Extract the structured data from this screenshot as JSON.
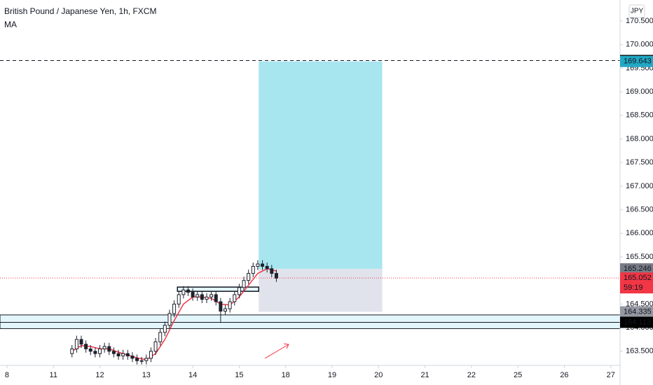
{
  "chart_data": {
    "type": "candlestick",
    "title": "British Pound / Japanese Yen, 1h, FXCM",
    "indicator": "MA",
    "currency": "JPY",
    "countdown": "59:19",
    "up_color": "#ffffff",
    "down_color": "#1e222d",
    "x": [
      1.4,
      1.5,
      1.6,
      1.7,
      1.8,
      1.9,
      2.0,
      2.1,
      2.2,
      2.3,
      2.4,
      2.5,
      2.6,
      2.7,
      2.8,
      2.9,
      3.0,
      3.1,
      3.2,
      3.3,
      3.4,
      3.5,
      3.6,
      3.7,
      3.8,
      3.9,
      4.0,
      4.1,
      4.2,
      4.3,
      4.4,
      4.5,
      4.6,
      4.7,
      4.8,
      4.9,
      5.0,
      5.1,
      5.2,
      5.3,
      5.4,
      5.5,
      5.6,
      5.7,
      5.8
    ],
    "open": [
      163.45,
      163.55,
      163.75,
      163.65,
      163.55,
      163.5,
      163.45,
      163.55,
      163.6,
      163.5,
      163.45,
      163.4,
      163.45,
      163.4,
      163.35,
      163.3,
      163.3,
      163.35,
      163.5,
      163.7,
      163.9,
      164.05,
      164.3,
      164.5,
      164.7,
      164.8,
      164.75,
      164.65,
      164.7,
      164.6,
      164.65,
      164.7,
      164.55,
      164.35,
      164.4,
      164.55,
      164.7,
      164.85,
      165.0,
      165.15,
      165.3,
      165.35,
      165.3,
      165.25,
      165.15
    ],
    "high": [
      163.63,
      163.83,
      163.83,
      163.73,
      163.63,
      163.58,
      163.63,
      163.68,
      163.68,
      163.58,
      163.53,
      163.53,
      163.53,
      163.48,
      163.43,
      163.38,
      163.43,
      163.58,
      163.78,
      163.98,
      164.13,
      164.38,
      164.58,
      164.78,
      164.88,
      164.88,
      164.83,
      164.78,
      164.78,
      164.73,
      164.78,
      164.78,
      164.63,
      164.48,
      164.63,
      164.78,
      164.93,
      165.08,
      165.23,
      165.38,
      165.43,
      165.43,
      165.38,
      165.33,
      165.23
    ],
    "low": [
      163.37,
      163.47,
      163.57,
      163.47,
      163.42,
      163.37,
      163.37,
      163.47,
      163.42,
      163.37,
      163.32,
      163.32,
      163.32,
      163.27,
      163.22,
      163.22,
      163.22,
      163.27,
      163.42,
      163.62,
      163.82,
      163.97,
      164.22,
      164.42,
      164.62,
      164.67,
      164.57,
      164.57,
      164.52,
      164.52,
      164.57,
      164.47,
      164.1,
      164.27,
      164.32,
      164.47,
      164.62,
      164.77,
      164.92,
      165.07,
      165.22,
      165.22,
      165.17,
      165.07,
      164.97
    ],
    "close": [
      163.55,
      163.75,
      163.65,
      163.55,
      163.5,
      163.45,
      163.55,
      163.6,
      163.5,
      163.45,
      163.4,
      163.45,
      163.4,
      163.35,
      163.3,
      163.3,
      163.35,
      163.5,
      163.7,
      163.9,
      164.05,
      164.3,
      164.5,
      164.7,
      164.8,
      164.75,
      164.65,
      164.7,
      164.6,
      164.65,
      164.7,
      164.55,
      164.35,
      164.4,
      164.55,
      164.7,
      164.85,
      165.0,
      165.15,
      165.3,
      165.35,
      165.3,
      165.25,
      165.15,
      165.05
    ],
    "ma": {
      "color": "#f23645",
      "x": [
        1.4,
        1.6,
        1.8,
        2.0,
        2.2,
        2.4,
        2.6,
        2.8,
        3.0,
        3.2,
        3.4,
        3.6,
        3.8,
        4.0,
        4.2,
        4.4,
        4.6,
        4.8,
        5.0,
        5.2,
        5.4,
        5.6,
        5.8
      ],
      "values": [
        163.5,
        163.62,
        163.6,
        163.55,
        163.55,
        163.48,
        163.42,
        163.36,
        163.32,
        163.45,
        163.75,
        164.15,
        164.5,
        164.65,
        164.65,
        164.62,
        164.5,
        164.48,
        164.65,
        164.9,
        165.15,
        165.25,
        165.2
      ]
    },
    "position": {
      "x_start": 5.42,
      "x_end": 8.08,
      "entry": 165.246,
      "target": 169.643,
      "stop": 164.335,
      "target_color": "#a8e6ef",
      "stop_color": "#e0e3eb"
    },
    "target_line": 169.662,
    "current_price": 165.052,
    "resistance_box": {
      "x": [
        3.67,
        5.42
      ],
      "y": [
        164.86,
        164.77
      ]
    },
    "zone": {
      "top": 164.27,
      "bottom": 163.98,
      "line": 164.113,
      "color": "#e3f6fb"
    },
    "price_labels": [
      {
        "value": 169.662,
        "color": "#000000"
      },
      {
        "value": 169.643,
        "color": "#22a8c4"
      },
      {
        "value": 165.246,
        "color": "#787b86"
      },
      {
        "value": 165.052,
        "color": "#f23645"
      },
      {
        "value": 164.335,
        "color": "#9598a1"
      },
      {
        "value": 164.113,
        "color": "#000000"
      }
    ],
    "xlim": [
      -0.15,
      13.2
    ],
    "ylim": [
      163.2,
      170.945
    ],
    "xticks": [
      {
        "value": 0,
        "label": "8"
      },
      {
        "value": 1,
        "label": "11"
      },
      {
        "value": 2,
        "label": "12"
      },
      {
        "value": 3,
        "label": "13"
      },
      {
        "value": 4,
        "label": "14"
      },
      {
        "value": 5,
        "label": "15"
      },
      {
        "value": 6,
        "label": "18"
      },
      {
        "value": 7,
        "label": "19"
      },
      {
        "value": 8,
        "label": "20"
      },
      {
        "value": 9,
        "label": "21"
      },
      {
        "value": 10,
        "label": "22"
      },
      {
        "value": 11,
        "label": "25"
      },
      {
        "value": 12,
        "label": "26"
      },
      {
        "value": 13,
        "label": "27"
      }
    ],
    "yticks": [
      {
        "value": 163.5,
        "label": "163.500"
      },
      {
        "value": 164,
        "label": "164.000"
      },
      {
        "value": 164.5,
        "label": "164.500"
      },
      {
        "value": 165,
        "label": "165.000"
      },
      {
        "value": 165.5,
        "label": "165.500"
      },
      {
        "value": 166,
        "label": "166.000"
      },
      {
        "value": 166.5,
        "label": "166.500"
      },
      {
        "value": 167,
        "label": "167.000"
      },
      {
        "value": 167.5,
        "label": "167.500"
      },
      {
        "value": 168,
        "label": "168.000"
      },
      {
        "value": 168.5,
        "label": "168.500"
      },
      {
        "value": 169,
        "label": "169.000"
      },
      {
        "value": 169.5,
        "label": "169.500"
      },
      {
        "value": 170,
        "label": "170.000"
      },
      {
        "value": 170.5,
        "label": "170.500"
      }
    ]
  }
}
